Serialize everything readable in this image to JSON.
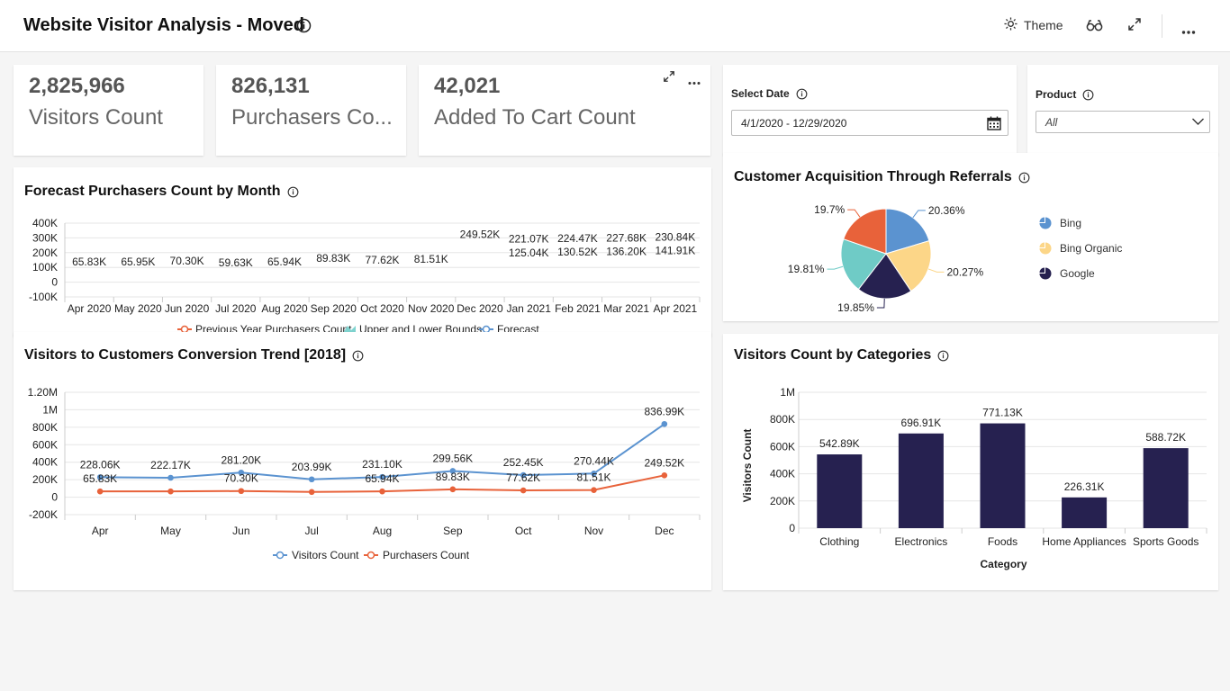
{
  "header": {
    "title": "Website Visitor Analysis - Moved",
    "theme_label": "Theme"
  },
  "kpis": [
    {
      "value": "2,825,966",
      "label": "Visitors Count"
    },
    {
      "value": "826,131",
      "label": "Purchasers Co..."
    },
    {
      "value": "42,021",
      "label": "Added To Cart Count"
    }
  ],
  "filters": {
    "date": {
      "label": "Select Date",
      "value": "4/1/2020 - 12/29/2020"
    },
    "product": {
      "label": "Product",
      "value": "All"
    }
  },
  "forecast": {
    "title": "Forecast Purchasers Count by Month",
    "y_ticks": [
      "400K",
      "300K",
      "200K",
      "100K",
      "0",
      "-100K"
    ],
    "months": [
      "Apr 2020",
      "May 2020",
      "Jun 2020",
      "Jul 2020",
      "Aug 2020",
      "Sep 2020",
      "Oct 2020",
      "Nov 2020",
      "Dec 2020",
      "Jan 2021",
      "Feb 2021",
      "Mar 2021",
      "Apr 2021"
    ],
    "legend": [
      "Previous Year Purchasers Count",
      "Upper and Lower Bounds",
      "Forecast"
    ]
  },
  "conversion": {
    "title": "Visitors to Customers Conversion Trend [2018]",
    "y_ticks": [
      "1.20M",
      "1M",
      "800K",
      "600K",
      "400K",
      "200K",
      "0",
      "-200K"
    ],
    "legend": [
      "Visitors Count",
      "Purchasers Count"
    ]
  },
  "referrals": {
    "title": "Customer Acquisition Through Referrals"
  },
  "categories": {
    "title": "Visitors Count by Categories",
    "y_ticks": [
      "1M",
      "800K",
      "600K",
      "400K",
      "200K",
      "0"
    ],
    "xlabel": "Category",
    "ylabel": "Visitors Count"
  },
  "colors": {
    "blue": "#5b93d0",
    "orange": "#e8623a",
    "navy": "#262150",
    "yellow": "#fcd688",
    "teal": "#6fcbc6",
    "band": "#7fd3cf"
  },
  "chart_data": [
    {
      "type": "line",
      "title": "Forecast Purchasers Count by Month",
      "categories": [
        "Apr 2020",
        "May 2020",
        "Jun 2020",
        "Jul 2020",
        "Aug 2020",
        "Sep 2020",
        "Oct 2020",
        "Nov 2020",
        "Dec 2020",
        "Jan 2021",
        "Feb 2021",
        "Mar 2021",
        "Apr 2021"
      ],
      "ylim": [
        -100000,
        400000
      ],
      "series": [
        {
          "name": "Previous Year Purchasers Count",
          "values": [
            65830,
            65950,
            70300,
            59630,
            65940,
            89830,
            77620,
            81510,
            249520,
            null,
            null,
            null,
            null
          ],
          "labels": [
            "65.83K",
            "65.95K",
            "70.30K",
            "59.63K",
            "65.94K",
            "89.83K",
            "77.62K",
            "81.51K",
            "249.52K",
            "",
            "",
            "",
            ""
          ]
        },
        {
          "name": "Forecast",
          "values": [
            null,
            null,
            null,
            null,
            null,
            null,
            null,
            null,
            null,
            221070,
            224470,
            227680,
            230840
          ],
          "labels": [
            "",
            "",
            "",
            "",
            "",
            "",
            "",
            "",
            "",
            "221.07K",
            "224.47K",
            "227.68K",
            "230.84K"
          ]
        },
        {
          "name": "Upper and Lower Bounds",
          "values": [
            null,
            null,
            null,
            null,
            null,
            null,
            null,
            null,
            null,
            125040,
            130520,
            136200,
            141910
          ],
          "labels": [
            "",
            "",
            "",
            "",
            "",
            "",
            "",
            "",
            "",
            "125.04K",
            "130.52K",
            "136.20K",
            "141.91K"
          ]
        }
      ],
      "legend": "bottom"
    },
    {
      "type": "line",
      "title": "Visitors to Customers Conversion Trend [2018]",
      "categories": [
        "Apr",
        "May",
        "Jun",
        "Jul",
        "Aug",
        "Sep",
        "Oct",
        "Nov",
        "Dec"
      ],
      "ylim": [
        -200000,
        1200000
      ],
      "series": [
        {
          "name": "Visitors Count",
          "color": "#5b93d0",
          "values": [
            228060,
            222170,
            281200,
            203990,
            231100,
            299560,
            252450,
            270440,
            836990
          ],
          "labels": [
            "228.06K",
            "222.17K",
            "281.20K",
            "203.99K",
            "231.10K",
            "299.56K",
            "252.45K",
            "270.44K",
            "836.99K"
          ]
        },
        {
          "name": "Purchasers Count",
          "color": "#e8623a",
          "values": [
            65830,
            65940,
            70300,
            59630,
            65940,
            89830,
            77620,
            81510,
            249520
          ],
          "labels": [
            "65.83K",
            "",
            "70.30K",
            "",
            "65.94K",
            "89.83K",
            "77.62K",
            "81.51K",
            "249.52K"
          ]
        }
      ],
      "legend": "bottom"
    },
    {
      "type": "pie",
      "title": "Customer Acquisition Through Referrals",
      "slices": [
        {
          "name": "Bing",
          "value": 20.36,
          "label": "20.36%",
          "color": "#5b93d0"
        },
        {
          "name": "Bing Organic",
          "value": 20.27,
          "label": "20.27%",
          "color": "#fcd688"
        },
        {
          "name": "Google",
          "value": 19.85,
          "label": "19.85%",
          "color": "#262150"
        },
        {
          "name": "",
          "value": 19.81,
          "label": "19.81%",
          "color": "#6fcbc6"
        },
        {
          "name": "",
          "value": 19.7,
          "label": "19.7%",
          "color": "#e8623a"
        }
      ],
      "legend_entries": [
        "Bing",
        "Bing Organic",
        "Google"
      ],
      "legend": "right"
    },
    {
      "type": "bar",
      "title": "Visitors Count by Categories",
      "categories": [
        "Clothing",
        "Electronics",
        "Foods",
        "Home Appliances",
        "Sports Goods"
      ],
      "values": [
        542890,
        696910,
        771130,
        226310,
        588720
      ],
      "labels": [
        "542.89K",
        "696.91K",
        "771.13K",
        "226.31K",
        "588.72K"
      ],
      "xlabel": "Category",
      "ylabel": "Visitors Count",
      "ylim": [
        0,
        1000000
      ],
      "color": "#262150"
    }
  ]
}
